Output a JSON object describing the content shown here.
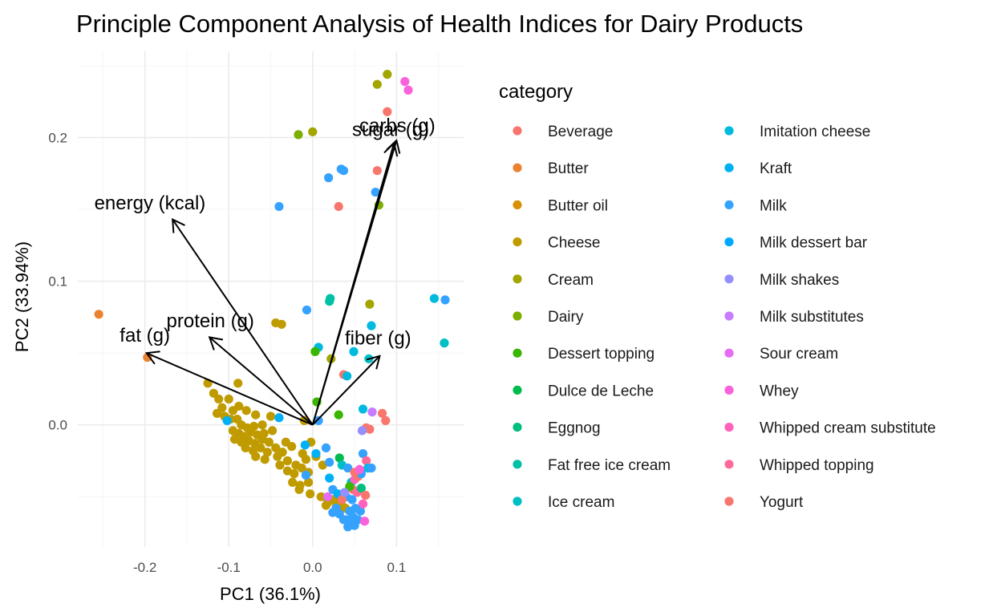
{
  "chart_data": {
    "type": "scatter",
    "title": "Principle Component Analysis of Health Indices for Dairy Products",
    "xlabel": "PC1 (36.1%)",
    "ylabel": "PC2 (33.94%)",
    "xlim": [
      -0.28,
      0.18
    ],
    "ylim": [
      -0.085,
      0.26
    ],
    "x_ticks": [
      -0.2,
      -0.1,
      0.0,
      0.1
    ],
    "x_tick_labels": [
      "-0.2",
      "-0.1",
      "0.0",
      "0.1"
    ],
    "y_ticks": [
      0.0,
      0.1,
      0.2
    ],
    "y_tick_labels": [
      "0.0",
      "0.1",
      "0.2"
    ],
    "grid": true,
    "legend": {
      "title": "category",
      "placement": "right",
      "columns": 2
    },
    "categories": [
      {
        "name": "Beverage",
        "color": "#F8766D"
      },
      {
        "name": "Butter",
        "color": "#EA8331"
      },
      {
        "name": "Butter oil",
        "color": "#D89000"
      },
      {
        "name": "Cheese",
        "color": "#C09B00"
      },
      {
        "name": "Cream",
        "color": "#A3A500"
      },
      {
        "name": "Dairy",
        "color": "#7CAE00"
      },
      {
        "name": "Dessert topping",
        "color": "#39B600"
      },
      {
        "name": "Dulce de Leche",
        "color": "#00BB4E"
      },
      {
        "name": "Eggnog",
        "color": "#00BF7D"
      },
      {
        "name": "Fat free ice cream",
        "color": "#00C1A3"
      },
      {
        "name": "Ice cream",
        "color": "#00BFC4"
      },
      {
        "name": "Imitation cheese",
        "color": "#00BAE0"
      },
      {
        "name": "Kraft",
        "color": "#00B0F6"
      },
      {
        "name": "Milk",
        "color": "#35A2FF"
      },
      {
        "name": "Milk dessert bar",
        "color": "#00A9FF"
      },
      {
        "name": "Milk shakes",
        "color": "#9590FF"
      },
      {
        "name": "Milk substitutes",
        "color": "#C77CFF"
      },
      {
        "name": "Sour cream",
        "color": "#E76BF3"
      },
      {
        "name": "Whey",
        "color": "#FA62DB"
      },
      {
        "name": "Whipped cream substitute",
        "color": "#FF62BC"
      },
      {
        "name": "Whipped topping",
        "color": "#FF6A98"
      },
      {
        "name": "Yogurt",
        "color": "#F8766D"
      }
    ],
    "vectors": [
      {
        "label": "carbs (g)",
        "x": 0.1,
        "y": 0.198,
        "lx": 0.101,
        "ly": 0.204
      },
      {
        "label": "sugar (g)",
        "x": 0.097,
        "y": 0.196,
        "lx": 0.093,
        "ly": 0.201
      },
      {
        "label": "energy (kcal)",
        "x": -0.167,
        "y": 0.143,
        "lx": -0.194,
        "ly": 0.15
      },
      {
        "label": "protein (g)",
        "x": -0.123,
        "y": 0.061,
        "lx": -0.122,
        "ly": 0.068
      },
      {
        "label": "fat (g)",
        "x": -0.198,
        "y": 0.05,
        "lx": -0.2,
        "ly": 0.058
      },
      {
        "label": "fiber (g)",
        "x": 0.08,
        "y": 0.048,
        "lx": 0.078,
        "ly": 0.056
      }
    ],
    "points": [
      {
        "x": 0.089,
        "y": 0.244,
        "c": "Cream"
      },
      {
        "x": 0.077,
        "y": 0.237,
        "c": "Cream"
      },
      {
        "x": 0.11,
        "y": 0.239,
        "c": "Whey"
      },
      {
        "x": 0.114,
        "y": 0.233,
        "c": "Whey"
      },
      {
        "x": 0.089,
        "y": 0.218,
        "c": "Beverage"
      },
      {
        "x": 0.077,
        "y": 0.177,
        "c": "Beverage"
      },
      {
        "x": 0.031,
        "y": 0.152,
        "c": "Beverage"
      },
      {
        "x": 0.0,
        "y": 0.204,
        "c": "Cream"
      },
      {
        "x": -0.017,
        "y": 0.202,
        "c": "Dairy"
      },
      {
        "x": 0.034,
        "y": 0.178,
        "c": "Milk"
      },
      {
        "x": 0.037,
        "y": 0.177,
        "c": "Milk"
      },
      {
        "x": 0.019,
        "y": 0.172,
        "c": "Milk"
      },
      {
        "x": 0.075,
        "y": 0.162,
        "c": "Milk"
      },
      {
        "x": 0.079,
        "y": 0.153,
        "c": "Dairy"
      },
      {
        "x": -0.04,
        "y": 0.152,
        "c": "Milk"
      },
      {
        "x": 0.145,
        "y": 0.088,
        "c": "Imitation cheese"
      },
      {
        "x": 0.158,
        "y": 0.087,
        "c": "Milk"
      },
      {
        "x": 0.157,
        "y": 0.057,
        "c": "Ice cream"
      },
      {
        "x": 0.021,
        "y": 0.088,
        "c": "Fat free ice cream"
      },
      {
        "x": 0.02,
        "y": 0.086,
        "c": "Fat free ice cream"
      },
      {
        "x": -0.007,
        "y": 0.08,
        "c": "Milk"
      },
      {
        "x": 0.068,
        "y": 0.084,
        "c": "Cream"
      },
      {
        "x": -0.044,
        "y": 0.071,
        "c": "Cheese"
      },
      {
        "x": -0.037,
        "y": 0.07,
        "c": "Cheese"
      },
      {
        "x": 0.07,
        "y": 0.069,
        "c": "Imitation cheese"
      },
      {
        "x": 0.007,
        "y": 0.054,
        "c": "Imitation cheese"
      },
      {
        "x": 0.003,
        "y": 0.051,
        "c": "Dessert topping"
      },
      {
        "x": 0.049,
        "y": 0.051,
        "c": "Imitation cheese"
      },
      {
        "x": 0.022,
        "y": 0.046,
        "c": "Cream"
      },
      {
        "x": 0.067,
        "y": 0.046,
        "c": "Ice cream"
      },
      {
        "x": -0.255,
        "y": 0.077,
        "c": "Butter"
      },
      {
        "x": -0.197,
        "y": 0.047,
        "c": "Butter"
      },
      {
        "x": 0.037,
        "y": 0.035,
        "c": "Yogurt"
      },
      {
        "x": 0.041,
        "y": 0.034,
        "c": "Imitation cheese"
      },
      {
        "x": 0.005,
        "y": 0.016,
        "c": "Dessert topping"
      },
      {
        "x": 0.06,
        "y": 0.011,
        "c": "Imitation cheese"
      },
      {
        "x": 0.071,
        "y": 0.009,
        "c": "Milk substitutes"
      },
      {
        "x": 0.083,
        "y": 0.008,
        "c": "Yogurt"
      },
      {
        "x": 0.087,
        "y": 0.003,
        "c": "Yogurt"
      },
      {
        "x": 0.031,
        "y": 0.007,
        "c": "Dessert topping"
      },
      {
        "x": 0.007,
        "y": 0.003,
        "c": "Milk"
      },
      {
        "x": 0.064,
        "y": -0.002,
        "c": "Yogurt"
      },
      {
        "x": 0.068,
        "y": -0.003,
        "c": "Yogurt"
      },
      {
        "x": 0.059,
        "y": -0.004,
        "c": "Milk shakes"
      },
      {
        "x": -0.125,
        "y": 0.029,
        "c": "Cheese"
      },
      {
        "x": -0.089,
        "y": 0.029,
        "c": "Cheese"
      },
      {
        "x": -0.118,
        "y": 0.022,
        "c": "Cheese"
      },
      {
        "x": -0.112,
        "y": 0.018,
        "c": "Cheese"
      },
      {
        "x": -0.1,
        "y": 0.018,
        "c": "Cheese"
      },
      {
        "x": -0.108,
        "y": 0.012,
        "c": "Cheese"
      },
      {
        "x": -0.088,
        "y": 0.013,
        "c": "Cheese"
      },
      {
        "x": -0.095,
        "y": 0.01,
        "c": "Cheese"
      },
      {
        "x": -0.079,
        "y": 0.01,
        "c": "Cheese"
      },
      {
        "x": -0.114,
        "y": 0.008,
        "c": "Cheese"
      },
      {
        "x": -0.105,
        "y": 0.006,
        "c": "Cheese"
      },
      {
        "x": -0.098,
        "y": 0.004,
        "c": "Cheese"
      },
      {
        "x": -0.09,
        "y": 0.004,
        "c": "Cheese"
      },
      {
        "x": -0.102,
        "y": 0.003,
        "c": "Kraft"
      },
      {
        "x": -0.068,
        "y": 0.007,
        "c": "Cheese"
      },
      {
        "x": -0.05,
        "y": 0.006,
        "c": "Cheese"
      },
      {
        "x": -0.04,
        "y": 0.005,
        "c": "Kraft"
      },
      {
        "x": -0.085,
        "y": 0.0,
        "c": "Cheese"
      },
      {
        "x": -0.078,
        "y": -0.002,
        "c": "Cheese"
      },
      {
        "x": -0.07,
        "y": -0.001,
        "c": "Cheese"
      },
      {
        "x": -0.06,
        "y": 0.0,
        "c": "Cheese"
      },
      {
        "x": -0.095,
        "y": -0.004,
        "c": "Cheese"
      },
      {
        "x": -0.088,
        "y": -0.006,
        "c": "Cheese"
      },
      {
        "x": -0.082,
        "y": -0.008,
        "c": "Cheese"
      },
      {
        "x": -0.074,
        "y": -0.005,
        "c": "Cheese"
      },
      {
        "x": -0.066,
        "y": -0.007,
        "c": "Cheese"
      },
      {
        "x": -0.058,
        "y": -0.006,
        "c": "Cheese"
      },
      {
        "x": -0.048,
        "y": -0.004,
        "c": "Cheese"
      },
      {
        "x": -0.093,
        "y": -0.01,
        "c": "Cheese"
      },
      {
        "x": -0.085,
        "y": -0.012,
        "c": "Cheese"
      },
      {
        "x": -0.076,
        "y": -0.011,
        "c": "Cheese"
      },
      {
        "x": -0.069,
        "y": -0.013,
        "c": "Cheese"
      },
      {
        "x": -0.06,
        "y": -0.01,
        "c": "Cheese"
      },
      {
        "x": -0.052,
        "y": -0.012,
        "c": "Cheese"
      },
      {
        "x": -0.08,
        "y": -0.016,
        "c": "Cheese"
      },
      {
        "x": -0.071,
        "y": -0.018,
        "c": "Cheese"
      },
      {
        "x": -0.062,
        "y": -0.016,
        "c": "Cheese"
      },
      {
        "x": -0.054,
        "y": -0.019,
        "c": "Cheese"
      },
      {
        "x": -0.044,
        "y": -0.016,
        "c": "Cheese"
      },
      {
        "x": -0.036,
        "y": -0.019,
        "c": "Cheese"
      },
      {
        "x": -0.068,
        "y": -0.022,
        "c": "Cheese"
      },
      {
        "x": -0.057,
        "y": -0.024,
        "c": "Cheese"
      },
      {
        "x": -0.042,
        "y": -0.022,
        "c": "Cheese"
      },
      {
        "x": -0.03,
        "y": -0.025,
        "c": "Cheese"
      },
      {
        "x": -0.02,
        "y": -0.028,
        "c": "Cheese"
      },
      {
        "x": -0.039,
        "y": -0.028,
        "c": "Cheese"
      },
      {
        "x": -0.03,
        "y": -0.032,
        "c": "Cheese"
      },
      {
        "x": -0.022,
        "y": -0.034,
        "c": "Cheese"
      },
      {
        "x": -0.013,
        "y": -0.03,
        "c": "Cheese"
      },
      {
        "x": -0.005,
        "y": -0.033,
        "c": "Cheese"
      },
      {
        "x": -0.024,
        "y": -0.04,
        "c": "Cheese"
      },
      {
        "x": -0.015,
        "y": -0.042,
        "c": "Cheese"
      },
      {
        "x": -0.005,
        "y": -0.04,
        "c": "Cheese"
      },
      {
        "x": -0.016,
        "y": -0.045,
        "c": "Cheese"
      },
      {
        "x": -0.003,
        "y": -0.048,
        "c": "Cheese"
      },
      {
        "x": 0.01,
        "y": -0.05,
        "c": "Cheese"
      },
      {
        "x": 0.018,
        "y": -0.054,
        "c": "Cheese"
      },
      {
        "x": 0.025,
        "y": -0.052,
        "c": "Cheese"
      },
      {
        "x": 0.016,
        "y": -0.056,
        "c": "Cheese"
      },
      {
        "x": 0.028,
        "y": -0.057,
        "c": "Cheese"
      },
      {
        "x": 0.034,
        "y": -0.055,
        "c": "Cheese"
      },
      {
        "x": 0.039,
        "y": -0.058,
        "c": "Cheese"
      },
      {
        "x": 0.03,
        "y": -0.06,
        "c": "Cheese"
      },
      {
        "x": -0.002,
        "y": -0.012,
        "c": "Cheese"
      },
      {
        "x": -0.012,
        "y": -0.02,
        "c": "Cheese"
      },
      {
        "x": 0.004,
        "y": -0.022,
        "c": "Cheese"
      },
      {
        "x": -0.008,
        "y": -0.024,
        "c": "Cheese"
      },
      {
        "x": 0.012,
        "y": -0.028,
        "c": "Cheese"
      },
      {
        "x": -0.025,
        "y": -0.015,
        "c": "Cheese"
      },
      {
        "x": -0.032,
        "y": -0.012,
        "c": "Cheese"
      },
      {
        "x": -0.01,
        "y": 0.003,
        "c": "Cheese"
      },
      {
        "x": -0.009,
        "y": -0.014,
        "c": "Kraft"
      },
      {
        "x": 0.016,
        "y": -0.016,
        "c": "Milk"
      },
      {
        "x": 0.004,
        "y": -0.02,
        "c": "Kraft"
      },
      {
        "x": 0.02,
        "y": -0.026,
        "c": "Milk"
      },
      {
        "x": -0.008,
        "y": -0.035,
        "c": "Milk"
      },
      {
        "x": 0.02,
        "y": -0.037,
        "c": "Kraft"
      },
      {
        "x": 0.032,
        "y": -0.023,
        "c": "Dulce de Leche"
      },
      {
        "x": 0.035,
        "y": -0.028,
        "c": "Ice cream"
      },
      {
        "x": 0.042,
        "y": -0.03,
        "c": "Milk"
      },
      {
        "x": 0.06,
        "y": -0.02,
        "c": "Milk"
      },
      {
        "x": 0.064,
        "y": -0.025,
        "c": "Whipped topping"
      },
      {
        "x": 0.066,
        "y": -0.03,
        "c": "Imitation cheese"
      },
      {
        "x": 0.07,
        "y": -0.03,
        "c": "Milk"
      },
      {
        "x": 0.046,
        "y": -0.04,
        "c": "Ice cream"
      },
      {
        "x": 0.05,
        "y": -0.038,
        "c": "Whipped cream substitute"
      },
      {
        "x": 0.054,
        "y": -0.036,
        "c": "Yogurt"
      },
      {
        "x": 0.058,
        "y": -0.034,
        "c": "Milk"
      },
      {
        "x": 0.05,
        "y": -0.033,
        "c": "Yogurt"
      },
      {
        "x": 0.056,
        "y": -0.031,
        "c": "Whey"
      },
      {
        "x": 0.048,
        "y": -0.045,
        "c": "Yogurt"
      },
      {
        "x": 0.053,
        "y": -0.047,
        "c": "Whipped topping"
      },
      {
        "x": 0.058,
        "y": -0.044,
        "c": "Eggnog"
      },
      {
        "x": 0.044,
        "y": -0.043,
        "c": "Dessert topping"
      },
      {
        "x": 0.04,
        "y": -0.05,
        "c": "Milk"
      },
      {
        "x": 0.047,
        "y": -0.052,
        "c": "Milk"
      },
      {
        "x": 0.024,
        "y": -0.045,
        "c": "Milk"
      },
      {
        "x": 0.018,
        "y": -0.05,
        "c": "Sour cream"
      },
      {
        "x": 0.03,
        "y": -0.048,
        "c": "Kraft"
      },
      {
        "x": 0.035,
        "y": -0.052,
        "c": "Yogurt"
      },
      {
        "x": 0.024,
        "y": -0.061,
        "c": "Milk"
      },
      {
        "x": 0.032,
        "y": -0.062,
        "c": "Milk"
      },
      {
        "x": 0.04,
        "y": -0.066,
        "c": "Milk"
      },
      {
        "x": 0.046,
        "y": -0.068,
        "c": "Milk"
      },
      {
        "x": 0.05,
        "y": -0.07,
        "c": "Milk"
      },
      {
        "x": 0.054,
        "y": -0.066,
        "c": "Milk"
      },
      {
        "x": 0.042,
        "y": -0.071,
        "c": "Milk"
      },
      {
        "x": 0.048,
        "y": -0.064,
        "c": "Milk"
      },
      {
        "x": 0.062,
        "y": -0.067,
        "c": "Whey"
      },
      {
        "x": 0.037,
        "y": -0.066,
        "c": "Milk"
      },
      {
        "x": 0.057,
        "y": -0.06,
        "c": "Milk"
      },
      {
        "x": 0.028,
        "y": -0.058,
        "c": "Milk"
      },
      {
        "x": 0.06,
        "y": -0.055,
        "c": "Whipped cream substitute"
      },
      {
        "x": 0.063,
        "y": -0.049,
        "c": "Yogurt"
      },
      {
        "x": 0.051,
        "y": -0.058,
        "c": "Milk"
      },
      {
        "x": 0.044,
        "y": -0.06,
        "c": "Milk"
      },
      {
        "x": 0.038,
        "y": -0.047,
        "c": "Milk shakes"
      }
    ]
  }
}
